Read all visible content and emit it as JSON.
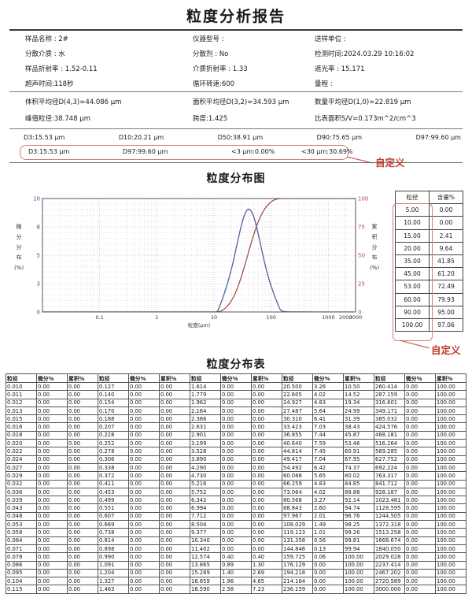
{
  "report": {
    "title": "粒度分析报告"
  },
  "info": {
    "rows": [
      [
        "样品名称 : 2#",
        "仪器型号 :",
        "送样单位 :"
      ],
      [
        "分散介质 : 水",
        "分散剂 : No",
        "检测时间:2024.03.29 10:16:02"
      ],
      [
        "样品折射率 : 1.52-0.11",
        "介质折射率 : 1.33",
        "遮光率 : 15.171"
      ],
      [
        "超声时间:118秒",
        "循环转速:600",
        "量程 :"
      ]
    ]
  },
  "summary": {
    "rows": [
      [
        "体积平均径D(4,3)=44.086 μm",
        "面积平均径D(3,2)=34.593 μm",
        "数量平均径D(1,0)=22.819 μm"
      ],
      [
        "峰值粒径:38.748 μm",
        "跨度:1.425",
        "比表面积S/V=0.173m^2/cm^3"
      ]
    ]
  },
  "d_values": {
    "items": [
      "D3:15.53 μm",
      "D10:20.21 μm",
      "D50:38.91 μm",
      "D90:75.65 μm",
      "D97:99.60 μm"
    ]
  },
  "custom_row": {
    "items": [
      "D3:15.53 μm",
      "D97:99.60 μm",
      "<3 μm:0.00%",
      "<30 μm:30.69%"
    ],
    "annotation": "自定义"
  },
  "section_titles": {
    "chart": "粒度分布图",
    "table": "粒度分布表"
  },
  "side_table": {
    "headers": [
      "粒径",
      "含量%"
    ],
    "rows": [
      [
        "5.00",
        "0.00"
      ],
      [
        "10.00",
        "0.00"
      ],
      [
        "15.00",
        "2.41"
      ],
      [
        "20.00",
        "9.64"
      ],
      [
        "35.00",
        "41.85"
      ],
      [
        "45.00",
        "61.20"
      ],
      [
        "53.00",
        "72.49"
      ],
      [
        "60.00",
        "79.93"
      ],
      [
        "90.00",
        "95.00"
      ],
      [
        "100.00",
        "97.06"
      ]
    ],
    "annotation": "自定义"
  },
  "chart_data": {
    "type": "line",
    "title": "粒度分布图",
    "xlabel": "粒度(μm)",
    "ylabel_left": "微分分布(%)",
    "ylabel_right": "累积分布(%)",
    "x_scale": "log",
    "xlim": [
      0.01,
      3000
    ],
    "x_ticks": {
      "values": [
        0.1,
        1,
        10,
        100,
        1000,
        2000,
        3000
      ],
      "labels": [
        "0.1",
        "1",
        "10",
        "100",
        "1000",
        "2000",
        "3000"
      ]
    },
    "ylim_left": [
      0,
      10
    ],
    "y_ticks_left": {
      "values": [
        0,
        2.5,
        5,
        7.5,
        10
      ],
      "labels": [
        "0",
        "3",
        "5",
        "8",
        "10"
      ]
    },
    "ylim_right": [
      0,
      100
    ],
    "y_ticks_right": {
      "values": [
        0,
        25,
        50,
        75,
        100
      ],
      "labels": [
        "0",
        "25",
        "50",
        "75",
        "100"
      ]
    },
    "grid": true,
    "legend": "none",
    "diff_display_scale": 1.2,
    "x": [
      0.01,
      10.34,
      11.402,
      12.574,
      13.865,
      15.289,
      16.859,
      18.59,
      20.5,
      22.605,
      24.927,
      27.487,
      30.31,
      33.423,
      36.855,
      40.64,
      44.814,
      49.417,
      54.492,
      60.088,
      66.259,
      73.064,
      80.568,
      88.843,
      97.967,
      108.029,
      119.123,
      131.358,
      144.848,
      159.725,
      176.129,
      3000
    ],
    "series": [
      {
        "name": "微分分布",
        "axis": "left",
        "color": "#5a5aa5",
        "y": [
          0,
          0,
          0,
          0.4,
          0.89,
          1.4,
          1.96,
          2.58,
          3.26,
          4.02,
          4.83,
          5.64,
          6.41,
          7.03,
          7.44,
          7.59,
          7.45,
          7.04,
          6.42,
          5.65,
          4.83,
          4.02,
          3.27,
          2.6,
          2.01,
          1.49,
          1.01,
          0.56,
          0.13,
          0.06,
          0,
          0
        ]
      },
      {
        "name": "累积分布",
        "axis": "right",
        "color": "#a0524a",
        "y": [
          0,
          0,
          0,
          0.4,
          1.3,
          2.69,
          4.65,
          7.23,
          10.5,
          14.52,
          19.34,
          24.99,
          31.39,
          38.43,
          45.87,
          53.46,
          60.91,
          67.95,
          74.37,
          80.02,
          84.85,
          88.88,
          92.14,
          94.74,
          96.76,
          98.25,
          99.26,
          99.81,
          99.94,
          100,
          100,
          100
        ]
      }
    ]
  },
  "main_table": {
    "columns": [
      "粒径",
      "微分%",
      "累积%"
    ],
    "groups": [
      {
        "size": [
          "0.010",
          "0.011",
          "0.012",
          "0.013",
          "0.015",
          "0.016",
          "0.018",
          "0.020",
          "0.022",
          "0.024",
          "0.027",
          "0.029",
          "0.032",
          "0.036",
          "0.039",
          "0.043",
          "0.048",
          "0.053",
          "0.058",
          "0.064",
          "0.071",
          "0.078",
          "0.086",
          "0.095",
          "0.104",
          "0.115"
        ],
        "diff": "0.00",
        "cum": "0.00"
      },
      {
        "size": [
          "0.127",
          "0.140",
          "0.154",
          "0.170",
          "0.188",
          "0.207",
          "0.228",
          "0.252",
          "0.278",
          "0.306",
          "0.338",
          "0.372",
          "0.411",
          "0.453",
          "0.499",
          "0.551",
          "0.607",
          "0.669",
          "0.738",
          "0.814",
          "0.898",
          "0.990",
          "1.091",
          "1.204",
          "1.327",
          "1.463"
        ],
        "diff": "0.00",
        "cum": "0.00"
      },
      {
        "size": [
          "1.614",
          "1.779",
          "1.962",
          "2.164",
          "2.386",
          "2.631",
          "2.901",
          "3.199",
          "3.528",
          "3.890",
          "4.290",
          "4.730",
          "5.216",
          "5.752",
          "6.342",
          "6.994",
          "7.712",
          "8.504",
          "9.377",
          "10.340",
          "11.402",
          "12.574",
          "13.865",
          "15.289",
          "16.859",
          "18.590"
        ],
        "diff": [
          "0.00",
          "0.00",
          "0.00",
          "0.00",
          "0.00",
          "0.00",
          "0.00",
          "0.00",
          "0.00",
          "0.00",
          "0.00",
          "0.00",
          "0.00",
          "0.00",
          "0.00",
          "0.00",
          "0.00",
          "0.00",
          "0.00",
          "0.00",
          "0.00",
          "0.40",
          "0.89",
          "1.40",
          "1.96",
          "2.58"
        ],
        "cum": [
          "0.00",
          "0.00",
          "0.00",
          "0.00",
          "0.00",
          "0.00",
          "0.00",
          "0.00",
          "0.00",
          "0.00",
          "0.00",
          "0.00",
          "0.00",
          "0.00",
          "0.00",
          "0.00",
          "0.00",
          "0.00",
          "0.00",
          "0.00",
          "0.00",
          "0.40",
          "1.30",
          "2.69",
          "4.65",
          "7.23"
        ]
      },
      {
        "size": [
          "20.500",
          "22.605",
          "24.927",
          "27.487",
          "30.310",
          "33.423",
          "36.855",
          "40.640",
          "44.814",
          "49.417",
          "54.492",
          "60.088",
          "66.259",
          "73.064",
          "80.568",
          "88.843",
          "97.967",
          "108.029",
          "119.123",
          "131.358",
          "144.848",
          "159.725",
          "176.129",
          "194.218",
          "214.164",
          "236.159"
        ],
        "diff": [
          "3.26",
          "4.02",
          "4.83",
          "5.64",
          "6.41",
          "7.03",
          "7.44",
          "7.59",
          "7.45",
          "7.04",
          "6.42",
          "5.65",
          "4.83",
          "4.02",
          "3.27",
          "2.60",
          "2.01",
          "1.49",
          "1.01",
          "0.56",
          "0.13",
          "0.06",
          "0.00",
          "0.00",
          "0.00",
          "0.00"
        ],
        "cum": [
          "10.50",
          "14.52",
          "19.34",
          "24.99",
          "31.39",
          "38.43",
          "45.87",
          "53.46",
          "60.91",
          "67.95",
          "74.37",
          "80.02",
          "84.85",
          "88.88",
          "92.14",
          "94.74",
          "96.76",
          "98.25",
          "99.26",
          "99.81",
          "99.94",
          "100.00",
          "100.00",
          "100.00",
          "100.00",
          "100.00"
        ]
      },
      {
        "size": [
          "260.414",
          "287.159",
          "316.601",
          "349.171",
          "385.032",
          "424.576",
          "468.181",
          "516.264",
          "569.285",
          "627.752",
          "692.224",
          "763.317",
          "841.712",
          "928.187",
          "1023.481",
          "1128.595",
          "1244.505",
          "1372.318",
          "1513.258",
          "1668.674",
          "1840.050",
          "2029.028",
          "2237.414",
          "2467.202",
          "2720.589",
          "3000.000"
        ],
        "diff": "0.00",
        "cum": "100.00"
      }
    ]
  },
  "colors": {
    "annotation_text": "#c0392b",
    "box_outline": "#d08070",
    "diff_curve": "#5a5aa5",
    "cum_curve": "#a0524a"
  }
}
